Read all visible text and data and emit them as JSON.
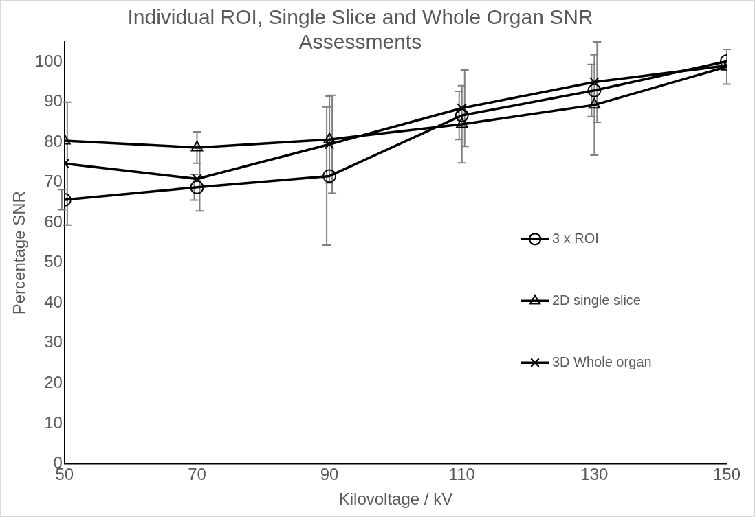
{
  "chart_data": {
    "type": "line",
    "title": "Individual ROI, Single Slice and Whole Organ SNR Assessments",
    "xlabel": "Kilovoltage / kV",
    "ylabel": "Percentage SNR",
    "x": [
      50,
      70,
      90,
      110,
      130,
      150
    ],
    "series": [
      {
        "name": "3 x ROI",
        "color": "#000000",
        "marker": "circle",
        "values": [
          65.7,
          68.8,
          71.6,
          86.7,
          92.9,
          100.2
        ],
        "errors": [
          2.5,
          3.2,
          17.2,
          6,
          6.5,
          null
        ]
      },
      {
        "name": "2D single slice",
        "color": "#000000",
        "marker": "triangle",
        "values": [
          80.4,
          78.7,
          80.7,
          84.5,
          89.3,
          98.8
        ],
        "errors": [
          null,
          3.9,
          10.8,
          9.6,
          12.5,
          4.3
        ]
      },
      {
        "name": "3D Whole organ",
        "color": "#000000",
        "marker": "cross",
        "values": [
          74.7,
          70.9,
          79.5,
          88.5,
          95,
          99.1
        ],
        "errors": [
          15.3,
          8,
          12.2,
          9.5,
          10,
          null
        ]
      }
    ],
    "xlim": [
      50,
      150
    ],
    "xticks": [
      50,
      70,
      90,
      110,
      130,
      150
    ],
    "ylim": [
      0,
      105
    ],
    "yticks": [
      0,
      10,
      20,
      30,
      40,
      50,
      60,
      70,
      80,
      90,
      100
    ],
    "grid": false,
    "legend": "right",
    "line_style": "solid"
  }
}
